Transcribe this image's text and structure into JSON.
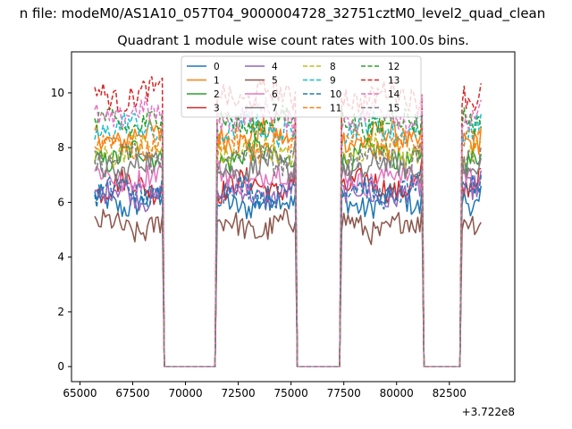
{
  "figure": {
    "suptitle": "n file: modeM0/AS1A10_057T04_9000004728_32751cztM0_level2_quad_clean",
    "offset_label": "+3.722e8"
  },
  "chart_data": {
    "type": "line",
    "title": "Quadrant 1 module wise count rates with 100.0s bins.",
    "xlabel": "",
    "ylabel": "",
    "x_offset": 372200000,
    "xlim": [
      64600,
      85600
    ],
    "ylim": [
      -0.55,
      11.5
    ],
    "xticks": [
      65000,
      67500,
      70000,
      72500,
      75000,
      77500,
      80000,
      82500
    ],
    "xtick_labels": [
      "65000",
      "67500",
      "70000",
      "72500",
      "75000",
      "77500",
      "80000",
      "82500"
    ],
    "yticks": [
      0,
      2,
      4,
      6,
      8,
      10
    ],
    "ytick_labels": [
      "0",
      "2",
      "4",
      "6",
      "8",
      "10"
    ],
    "grid": false,
    "legend_position": "top-center",
    "legend_columns": 4,
    "x_start": 65700,
    "x_step": 100,
    "segments": [
      {
        "start": 65700,
        "end": 68900
      },
      {
        "start": 71500,
        "end": 75200
      },
      {
        "start": 77400,
        "end": 81200
      },
      {
        "start": 83100,
        "end": 84000
      }
    ],
    "gaps": [
      {
        "from": 69000,
        "to": 71500
      },
      {
        "from": 75300,
        "to": 77400
      },
      {
        "from": 81300,
        "to": 83100
      }
    ],
    "series": [
      {
        "name": "0",
        "color": "#1f77b4",
        "style": "solid",
        "mean": 6.0
      },
      {
        "name": "1",
        "color": "#ff7f0e",
        "style": "solid",
        "mean": 8.4
      },
      {
        "name": "2",
        "color": "#2ca02c",
        "style": "solid",
        "mean": 7.7
      },
      {
        "name": "3",
        "color": "#d62728",
        "style": "solid",
        "mean": 6.6
      },
      {
        "name": "4",
        "color": "#9467bd",
        "style": "solid",
        "mean": 6.3
      },
      {
        "name": "5",
        "color": "#8c564b",
        "style": "solid",
        "mean": 5.1
      },
      {
        "name": "6",
        "color": "#e377c2",
        "style": "solid",
        "mean": 6.9
      },
      {
        "name": "7",
        "color": "#7f7f7f",
        "style": "solid",
        "mean": 7.3
      },
      {
        "name": "8",
        "color": "#bcbd22",
        "style": "dashed",
        "mean": 7.9
      },
      {
        "name": "9",
        "color": "#17becf",
        "style": "dashed",
        "mean": 8.7
      },
      {
        "name": "10",
        "color": "#1f77b4",
        "style": "dashed",
        "mean": 6.4
      },
      {
        "name": "11",
        "color": "#ff7f0e",
        "style": "dashed",
        "mean": 8.1
      },
      {
        "name": "12",
        "color": "#2ca02c",
        "style": "dashed",
        "mean": 8.9
      },
      {
        "name": "13",
        "color": "#d62728",
        "style": "dashed",
        "mean": 9.9
      },
      {
        "name": "14",
        "color": "#e377c2",
        "style": "dashed",
        "mean": 9.2
      },
      {
        "name": "15",
        "color": "#7f7f7f",
        "style": "dashed",
        "mean": 7.6
      }
    ]
  }
}
